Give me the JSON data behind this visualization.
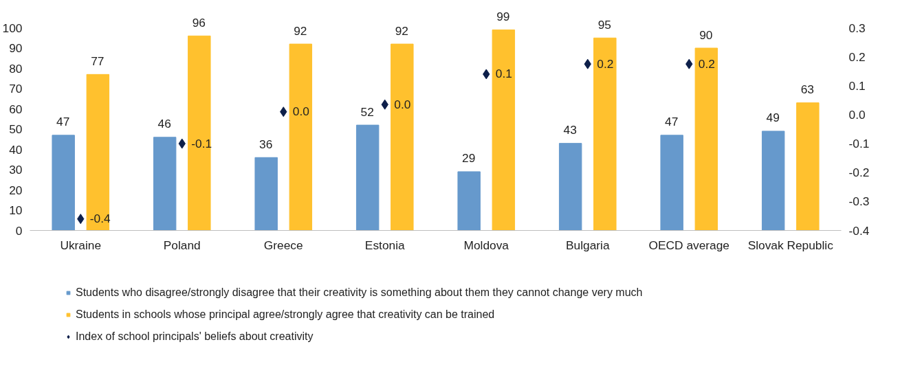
{
  "chart_data": {
    "type": "bar",
    "categories": [
      "Ukraine",
      "Poland",
      "Greece",
      "Estonia",
      "Moldova",
      "Bulgaria",
      "OECD average",
      "Slovak Republic"
    ],
    "series": [
      {
        "name": "Students who disagree/strongly disagree that their creativity is something about them they cannot change very much",
        "color": "#6699cc",
        "values": [
          47,
          46,
          36,
          52,
          29,
          43,
          47,
          49
        ]
      },
      {
        "name": "Students in schools whose principal agree/strongly agree that creativity can be trained",
        "color": "#ffc12e",
        "values": [
          77,
          96,
          92,
          92,
          99,
          95,
          90,
          63
        ]
      },
      {
        "name": "Index of school principals' beliefs about creativity",
        "color": "#0d1f4a",
        "type": "scatter",
        "axis": "y2",
        "marker": "diamond",
        "values": [
          -0.36,
          -0.1,
          0.01,
          0.035,
          0.14,
          0.175,
          0.175,
          null
        ],
        "value_labels": [
          "-0.4",
          "-0.1",
          "0.0",
          "0.0",
          "0.1",
          "0.2",
          "0.2",
          null
        ]
      }
    ],
    "data_labels": true,
    "ylim": [
      0,
      100
    ],
    "yticks": [
      0,
      10,
      20,
      30,
      40,
      50,
      60,
      70,
      80,
      90,
      100
    ],
    "y2lim": [
      -0.4,
      0.3
    ],
    "y2ticks": [
      {
        "value": -0.4,
        "label": "-0.4"
      },
      {
        "value": -0.3,
        "label": "-0.3"
      },
      {
        "value": -0.2,
        "label": "-0.2"
      },
      {
        "value": -0.1,
        "label": "-0.1"
      },
      {
        "value": 0.0,
        "label": "0.0"
      },
      {
        "value": 0.1,
        "label": "0.1"
      },
      {
        "value": 0.2,
        "label": "0.2"
      },
      {
        "value": 0.3,
        "label": "0.3"
      }
    ],
    "legend": "bottom"
  }
}
